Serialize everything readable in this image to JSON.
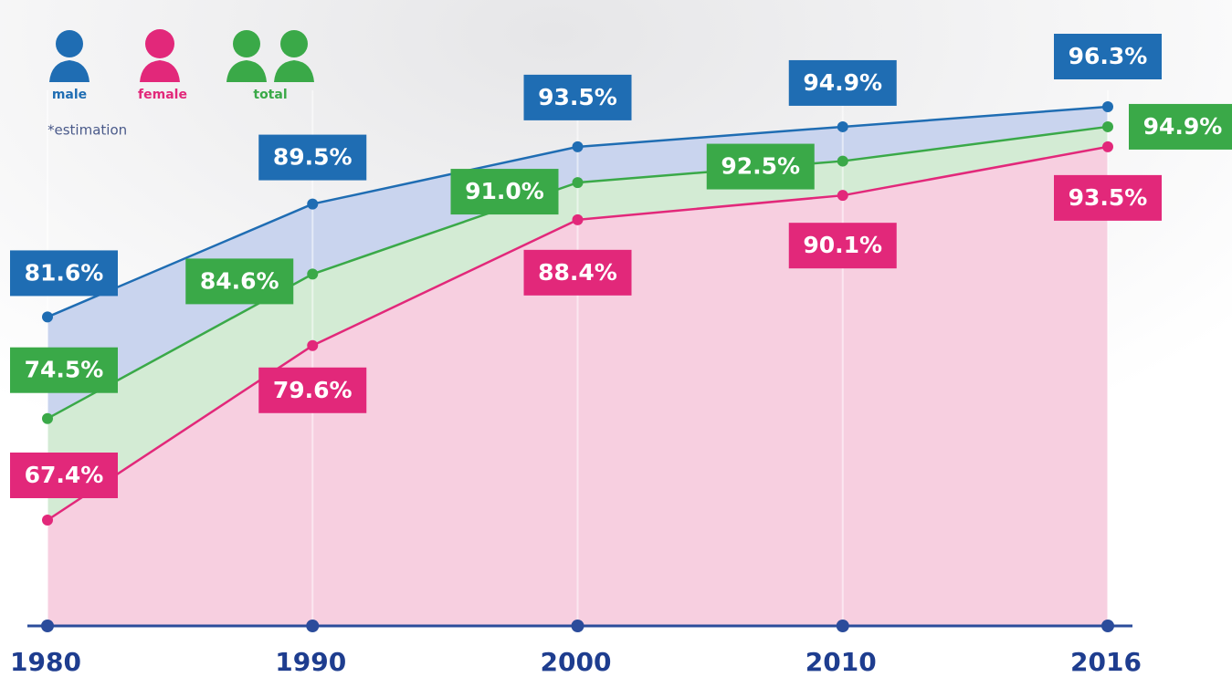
{
  "chart_data": {
    "type": "line",
    "note": "*estimation",
    "categories": [
      "1980",
      "1990",
      "2000",
      "2010",
      "2016"
    ],
    "ylim": [
      60,
      100
    ],
    "area": true,
    "series": [
      {
        "name": "male",
        "color": "#1f6db3",
        "fill": "#c9d4ee",
        "values": [
          81.6,
          89.5,
          93.5,
          94.9,
          96.3
        ],
        "value_labels": [
          "81.6%",
          "89.5%",
          "93.5%",
          "94.9%",
          "96.3%"
        ]
      },
      {
        "name": "female",
        "color": "#e2287a",
        "fill": "#f7cfe0",
        "values": [
          67.4,
          79.6,
          88.4,
          90.1,
          93.5
        ],
        "value_labels": [
          "67.4%",
          "79.6%",
          "88.4%",
          "90.1%",
          "93.5%"
        ]
      },
      {
        "name": "total",
        "color": "#3aa948",
        "fill": "#d3ebd4",
        "values": [
          74.5,
          84.6,
          91.0,
          92.5,
          94.9
        ],
        "value_labels": [
          "74.5%",
          "84.6%",
          "91.0%",
          "92.5%",
          "94.9%"
        ]
      }
    ]
  }
}
